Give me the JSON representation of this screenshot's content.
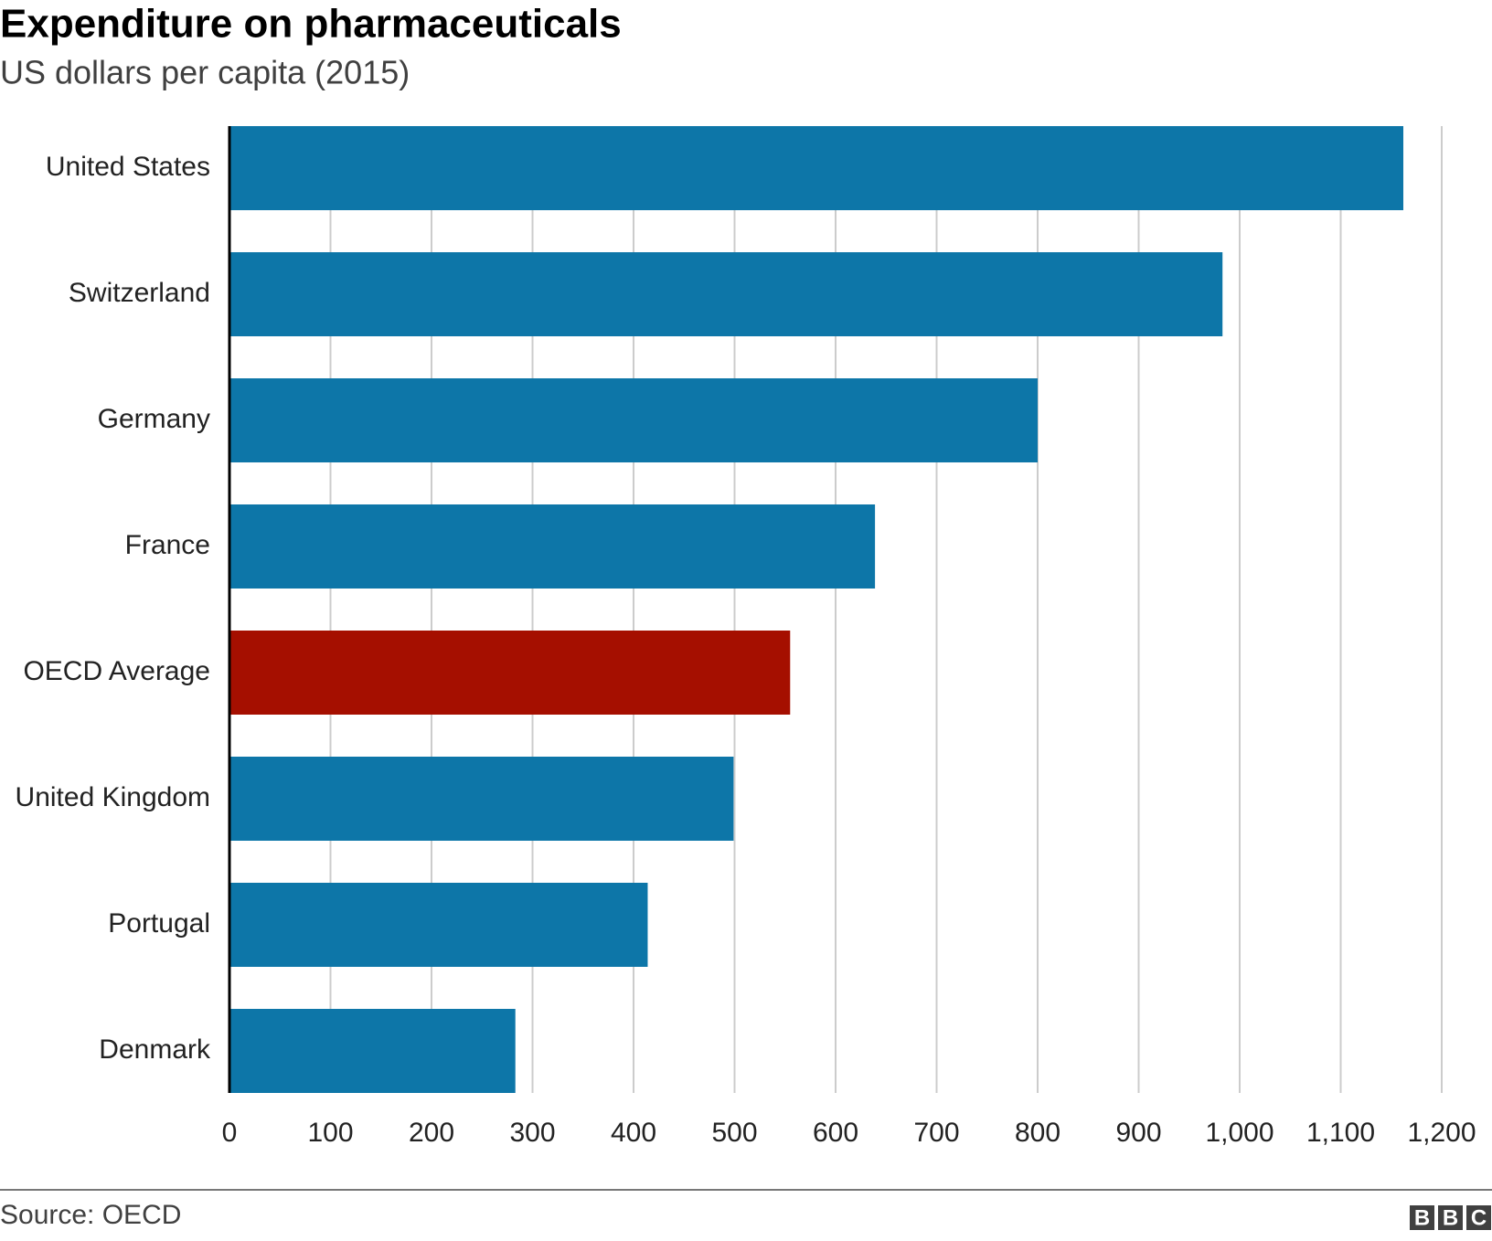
{
  "chart_data": {
    "type": "bar",
    "orientation": "horizontal",
    "title": "Expenditure on pharmaceuticals",
    "subtitle": "US dollars per capita (2015)",
    "categories": [
      "United States",
      "Switzerland",
      "Germany",
      "France",
      "OECD Average",
      "United Kingdom",
      "Portugal",
      "Denmark"
    ],
    "values": [
      1162,
      983,
      800,
      639,
      555,
      499,
      414,
      283
    ],
    "colors": [
      "#0d76a8",
      "#0d76a8",
      "#0d76a8",
      "#0d76a8",
      "#a50f00",
      "#0d76a8",
      "#0d76a8",
      "#0d76a8"
    ],
    "xlim": [
      0,
      1200
    ],
    "xticks": [
      0,
      100,
      200,
      300,
      400,
      500,
      600,
      700,
      800,
      900,
      {
        "value": 1000,
        "label": "1,000"
      },
      {
        "value": 1100,
        "label": "1,100"
      },
      {
        "value": 1200,
        "label": "1,200"
      }
    ],
    "grid": true,
    "source": "Source: OECD",
    "logo": [
      "B",
      "B",
      "C"
    ]
  }
}
